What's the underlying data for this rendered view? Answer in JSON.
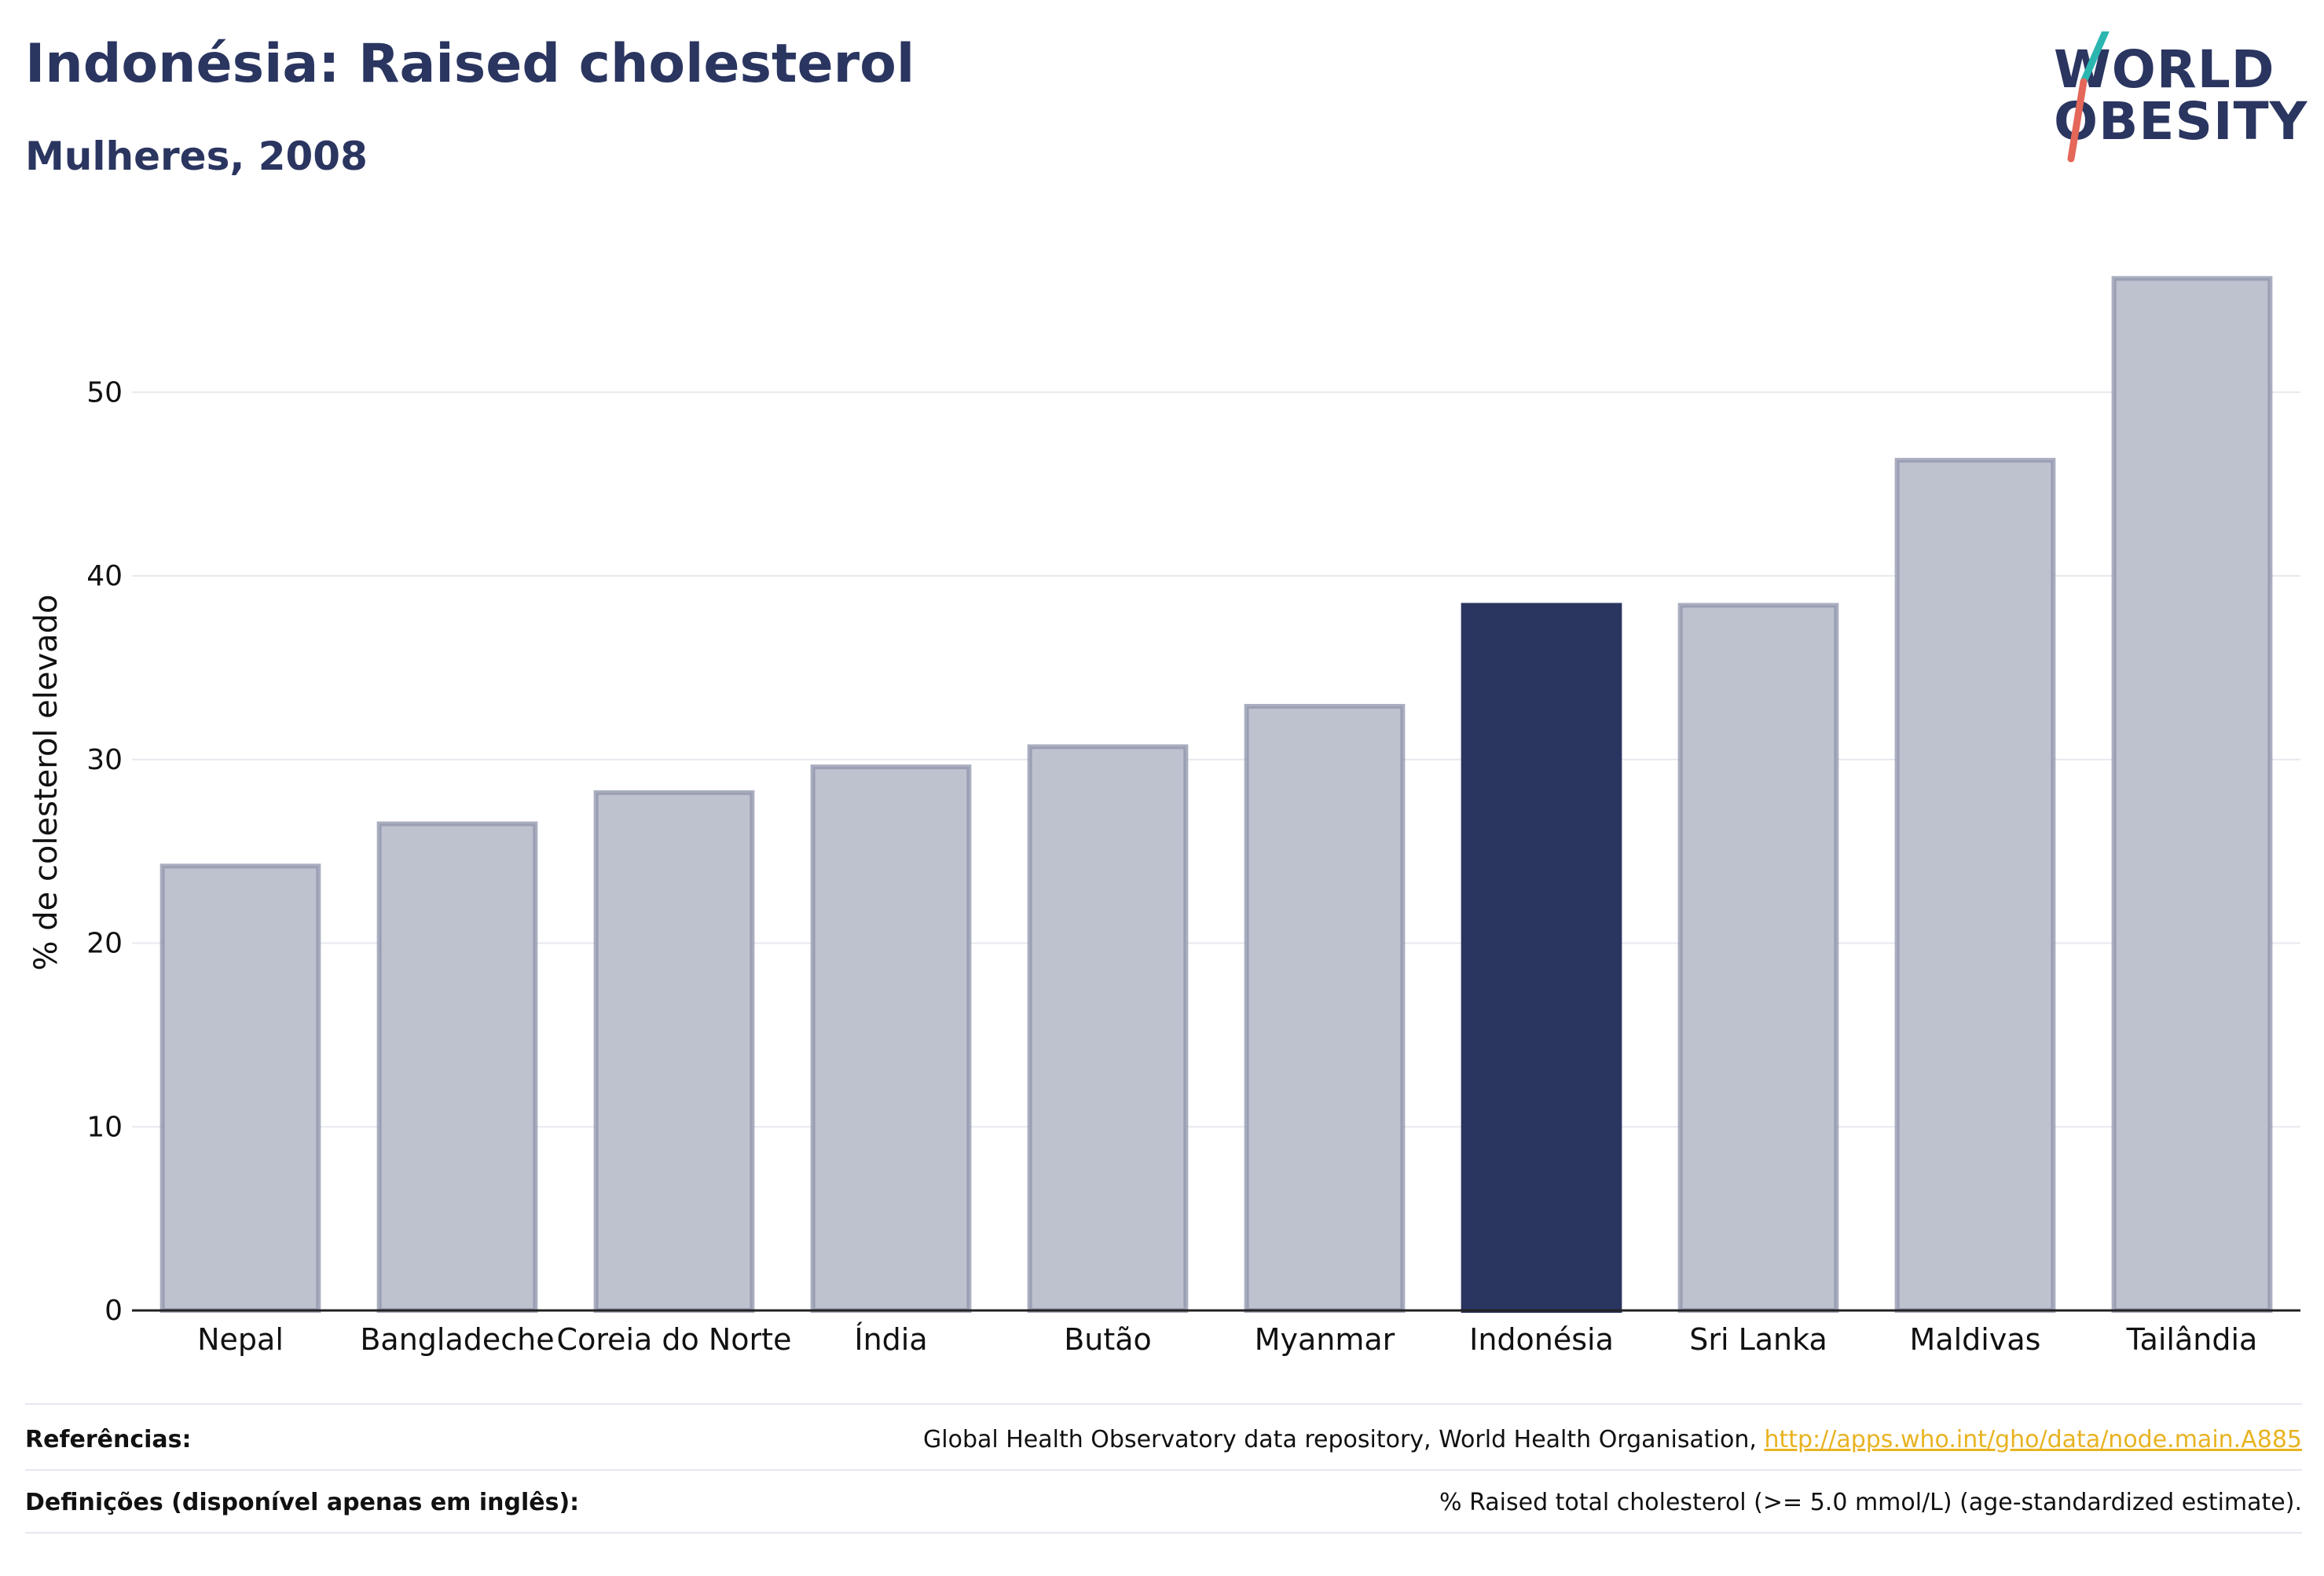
{
  "title": "Indonésia: Raised cholesterol",
  "subtitle": "Mulheres, 2008",
  "logo": {
    "line1": "WORLD",
    "line2": "OBESITY",
    "accent_colors": [
      "#2bb6b0",
      "#e4675a"
    ]
  },
  "colors": {
    "highlight": "#2a3560",
    "bar": "#bec2cf",
    "bar_border": "#8d93ab",
    "grid": "#e8e9ef"
  },
  "chart_data": {
    "type": "bar",
    "categories": [
      "Nepal",
      "Bangladeche",
      "Coreia do Norte",
      "Índia",
      "Butão",
      "Myanmar",
      "Indonésia",
      "Sri Lanka",
      "Maldivas",
      "Tailândia"
    ],
    "values": [
      24.2,
      26.5,
      28.2,
      29.6,
      30.7,
      32.9,
      38.4,
      38.4,
      46.3,
      56.2
    ],
    "highlight": "Indonésia",
    "xlabel": "",
    "ylabel": "% de colesterol elevado",
    "ylim": [
      0,
      57.5
    ],
    "yticks": [
      0,
      10,
      20,
      30,
      40,
      50
    ],
    "grid": true
  },
  "footer": {
    "references_label": "Referências:",
    "references_text": "Global Health Observatory data repository, World Health Organisation, ",
    "references_link": "http://apps.who.int/gho/data/node.main.A885",
    "definitions_label": "Definições (disponível apenas em inglês):",
    "definitions_text": "% Raised total cholesterol (>= 5.0 mmol/L) (age-standardized estimate)."
  }
}
